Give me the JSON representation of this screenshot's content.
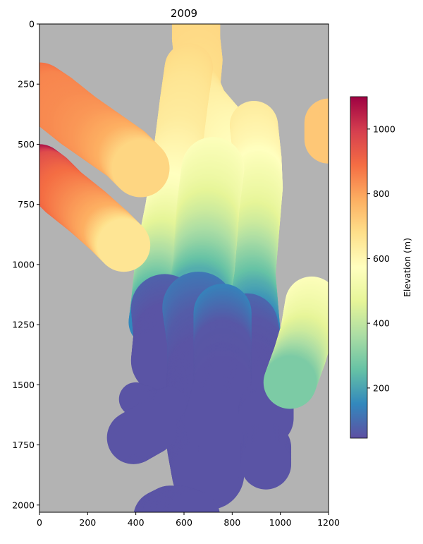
{
  "chart_data": {
    "type": "heatmap",
    "title": "2009",
    "xlabel": "",
    "ylabel": "",
    "xlim": [
      0,
      1200
    ],
    "ylim": [
      2030,
      0
    ],
    "y_inverted": true,
    "x_ticks": [
      0,
      200,
      400,
      600,
      800,
      1000,
      1200
    ],
    "y_ticks": [
      0,
      250,
      500,
      750,
      1000,
      1250,
      1500,
      1750,
      2000
    ],
    "background_color": "#b3b3b3",
    "colormap": "Spectral_r",
    "colorbar": {
      "label": "Elevation (m)",
      "range": [
        45,
        1100
      ],
      "ticks": [
        200,
        400,
        600,
        800,
        1000
      ]
    },
    "swaths": [
      {
        "name": "main-glacier",
        "width": 100,
        "path": [
          [
            650,
            0
          ],
          [
            650,
            60
          ],
          [
            660,
            150
          ],
          [
            650,
            260
          ],
          [
            680,
            330
          ],
          [
            740,
            400
          ],
          [
            800,
            470
          ],
          [
            850,
            560
          ],
          [
            870,
            640
          ],
          [
            870,
            720
          ],
          [
            850,
            790
          ],
          [
            820,
            860
          ],
          [
            800,
            920
          ],
          [
            800,
            980
          ],
          [
            790,
            1050
          ],
          [
            780,
            1110
          ],
          [
            770,
            1180
          ]
        ],
        "values": [
          700,
          695,
          690,
          680,
          640,
          620,
          600,
          580,
          560,
          530,
          500,
          460,
          420,
          380,
          320,
          260,
          200
        ]
      },
      {
        "name": "main-glacier-west",
        "width": 100,
        "path": [
          [
            620,
            180
          ],
          [
            600,
            320
          ],
          [
            580,
            480
          ],
          [
            560,
            620
          ],
          [
            540,
            760
          ],
          [
            520,
            860
          ],
          [
            500,
            960
          ],
          [
            490,
            1060
          ],
          [
            480,
            1160
          ],
          [
            470,
            1240
          ]
        ],
        "values": [
          690,
          660,
          640,
          600,
          560,
          500,
          430,
          340,
          240,
          150
        ]
      },
      {
        "name": "main-glacier-east",
        "width": 100,
        "path": [
          [
            890,
            420
          ],
          [
            905,
            560
          ],
          [
            910,
            680
          ],
          [
            900,
            800
          ],
          [
            890,
            920
          ],
          [
            880,
            1040
          ],
          [
            890,
            1160
          ],
          [
            900,
            1280
          ]
        ],
        "values": [
          640,
          600,
          540,
          490,
          420,
          320,
          220,
          140
        ]
      },
      {
        "name": "main-glacier-center",
        "width": 130,
        "path": [
          [
            720,
            600
          ],
          [
            700,
            760
          ],
          [
            690,
            900
          ],
          [
            680,
            1020
          ],
          [
            660,
            1140
          ]
        ],
        "values": [
          560,
          500,
          420,
          330,
          220
        ]
      },
      {
        "name": "lower-tongue-west",
        "width": 140,
        "path": [
          [
            520,
            1180
          ],
          [
            530,
            1300
          ],
          [
            520,
            1400
          ]
        ],
        "values": [
          80,
          55,
          55
        ]
      },
      {
        "name": "lower-tongue-center",
        "width": 150,
        "path": [
          [
            660,
            1180
          ],
          [
            680,
            1320
          ],
          [
            680,
            1450
          ],
          [
            670,
            1600
          ],
          [
            680,
            1760
          ],
          [
            700,
            1870
          ]
        ],
        "values": [
          120,
          70,
          55,
          55,
          55,
          55
        ]
      },
      {
        "name": "lower-tongue-east",
        "width": 130,
        "path": [
          [
            860,
            1250
          ],
          [
            880,
            1350
          ],
          [
            870,
            1450
          ],
          [
            820,
            1530
          ],
          [
            780,
            1620
          ],
          [
            790,
            1760
          ]
        ],
        "values": [
          90,
          60,
          55,
          55,
          55,
          55
        ]
      },
      {
        "name": "lower-tongue-fill",
        "width": 120,
        "path": [
          [
            760,
            1200
          ],
          [
            760,
            1350
          ],
          [
            760,
            1500
          ],
          [
            720,
            1650
          ]
        ],
        "values": [
          140,
          60,
          55,
          55
        ]
      },
      {
        "name": "blob-left-top",
        "width": 70,
        "path": [
          [
            400,
            1560
          ],
          [
            480,
            1590
          ],
          [
            540,
            1580
          ]
        ],
        "values": [
          55,
          55,
          55
        ]
      },
      {
        "name": "blob-left-bottom",
        "width": 110,
        "path": [
          [
            390,
            1720
          ],
          [
            460,
            1680
          ]
        ],
        "values": [
          55,
          55
        ]
      },
      {
        "name": "blob-right-small",
        "width": 115,
        "path": [
          [
            940,
            1600
          ],
          [
            940,
            1640
          ]
        ],
        "values": [
          55,
          55
        ]
      },
      {
        "name": "blob-right-bottom",
        "width": 105,
        "path": [
          [
            940,
            1760
          ],
          [
            940,
            1830
          ]
        ],
        "values": [
          55,
          55
        ]
      },
      {
        "name": "blob-bottom",
        "width": 110,
        "path": [
          [
            500,
            2050
          ],
          [
            540,
            2030
          ],
          [
            590,
            2030
          ],
          [
            640,
            2050
          ]
        ],
        "values": [
          55,
          55,
          55,
          55
        ]
      },
      {
        "name": "west-arm-upper",
        "width": 120,
        "path": [
          [
            0,
            280
          ],
          [
            60,
            320
          ],
          [
            160,
            400
          ],
          [
            260,
            470
          ],
          [
            360,
            540
          ],
          [
            420,
            600
          ]
        ],
        "values": [
          880,
          850,
          840,
          820,
          780,
          700
        ]
      },
      {
        "name": "west-arm-lower",
        "width": 110,
        "path": [
          [
            0,
            610
          ],
          [
            40,
            640
          ],
          [
            100,
            700
          ],
          [
            200,
            780
          ],
          [
            290,
            860
          ],
          [
            350,
            920
          ]
        ],
        "values": [
          1070,
          960,
          900,
          840,
          780,
          660
        ]
      },
      {
        "name": "east-blob-top",
        "width": 100,
        "path": [
          [
            1200,
            410
          ],
          [
            1200,
            480
          ]
        ],
        "values": [
          730,
          730
        ]
      },
      {
        "name": "east-tongue",
        "width": 110,
        "path": [
          [
            1130,
            1160
          ],
          [
            1110,
            1280
          ],
          [
            1080,
            1380
          ],
          [
            1040,
            1490
          ]
        ],
        "values": [
          560,
          500,
          420,
          290
        ]
      }
    ]
  }
}
